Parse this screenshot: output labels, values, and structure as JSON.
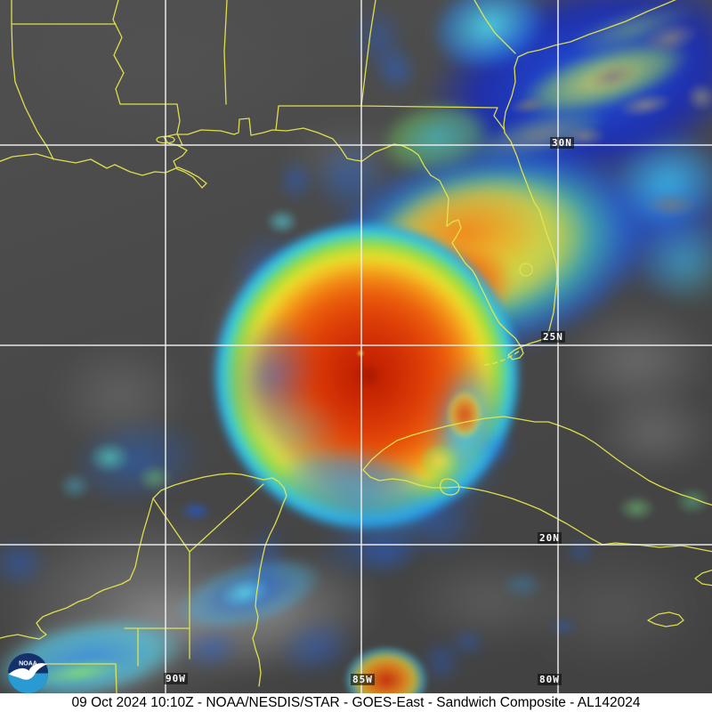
{
  "caption": {
    "text": "09 Oct 2024 10:10Z - NOAA/NESDIS/STAR - GOES-East - Sandwich Composite - AL142024"
  },
  "satellite_info": {
    "datetime": "09 Oct 2024 10:10Z",
    "agency": "NOAA/NESDIS/STAR",
    "platform": "GOES-East",
    "product": "Sandwich Composite",
    "storm_id": "AL142024"
  },
  "grid_labels": {
    "lat": [
      "30N",
      "25N",
      "20N"
    ],
    "lon": [
      "90W",
      "85W",
      "80W"
    ]
  },
  "logo": {
    "text": "NOAA"
  },
  "colors": {
    "coastline_yellow": "#e8e64f",
    "gridline_white": "#f0f0f0",
    "caption_background": "#ffffff",
    "caption_text": "#000000",
    "logo_dark_blue": "#15316b",
    "logo_light_blue": "#2a9ad2",
    "background_gray": "#474747",
    "ir_colormap_cold_to_warm": [
      "#bd1d00",
      "#ea5c0c",
      "#f3c224",
      "#9fdc3a",
      "#43d3c8",
      "#2196ef",
      "#1226c8"
    ]
  }
}
